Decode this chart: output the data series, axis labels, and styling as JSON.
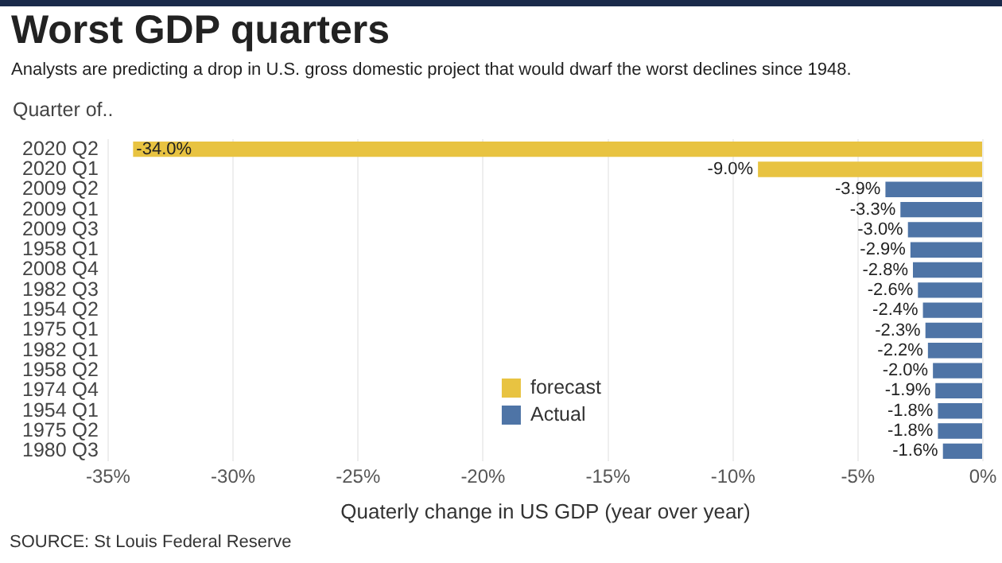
{
  "chart_data": {
    "type": "bar",
    "orientation": "horizontal",
    "stacked": true,
    "title": "Worst GDP quarters",
    "subtitle": "Analysts are predicting a drop in U.S. gross domestic project that would dwarf the worst declines since 1948.",
    "ylabel": "Quarter of..",
    "xlabel": "Quaterly change in US GDP (year over year)",
    "categories": [
      "2020 Q2",
      "2020 Q1",
      "2009 Q2",
      "2009 Q1",
      "2009 Q3",
      "1958 Q1",
      "2008 Q4",
      "1982 Q3",
      "1954 Q2",
      "1975 Q1",
      "1982 Q1",
      "1958 Q2",
      "1974 Q4",
      "1954 Q1",
      "1975 Q2",
      "1980 Q3"
    ],
    "series": [
      {
        "name": "forecast",
        "color": "#e8c341",
        "values": [
          -34.0,
          -9.0,
          null,
          null,
          null,
          null,
          null,
          null,
          null,
          null,
          null,
          null,
          null,
          null,
          null,
          null
        ],
        "value_labels": [
          "-34.0%",
          "-9.0%",
          null,
          null,
          null,
          null,
          null,
          null,
          null,
          null,
          null,
          null,
          null,
          null,
          null,
          null
        ]
      },
      {
        "name": "Actual",
        "color": "#4e74a6",
        "values": [
          null,
          null,
          -3.9,
          -3.3,
          -3.0,
          -2.9,
          -2.8,
          -2.6,
          -2.4,
          -2.3,
          -2.2,
          -2.0,
          -1.9,
          -1.8,
          -1.8,
          -1.6
        ],
        "value_labels": [
          null,
          null,
          "-3.9%",
          "-3.3%",
          "-3.0%",
          "-2.9%",
          "-2.8%",
          "-2.6%",
          "-2.4%",
          "-2.3%",
          "-2.2%",
          "-2.0%",
          "-1.9%",
          "-1.8%",
          "-1.8%",
          "-1.6%"
        ]
      }
    ],
    "xlim": [
      -35,
      0
    ],
    "xticks": [
      {
        "value": -35,
        "label": "-35%"
      },
      {
        "value": -30,
        "label": "-30%"
      },
      {
        "value": -25,
        "label": "-25%"
      },
      {
        "value": -20,
        "label": "-20%"
      },
      {
        "value": -15,
        "label": "-15%"
      },
      {
        "value": -10,
        "label": "-10%"
      },
      {
        "value": -5,
        "label": "-5%"
      },
      {
        "value": 0,
        "label": "0%"
      }
    ],
    "grid": "x",
    "legend": "bottom",
    "annotations": [
      "SOURCE: St Louis Federal Reserve"
    ]
  }
}
